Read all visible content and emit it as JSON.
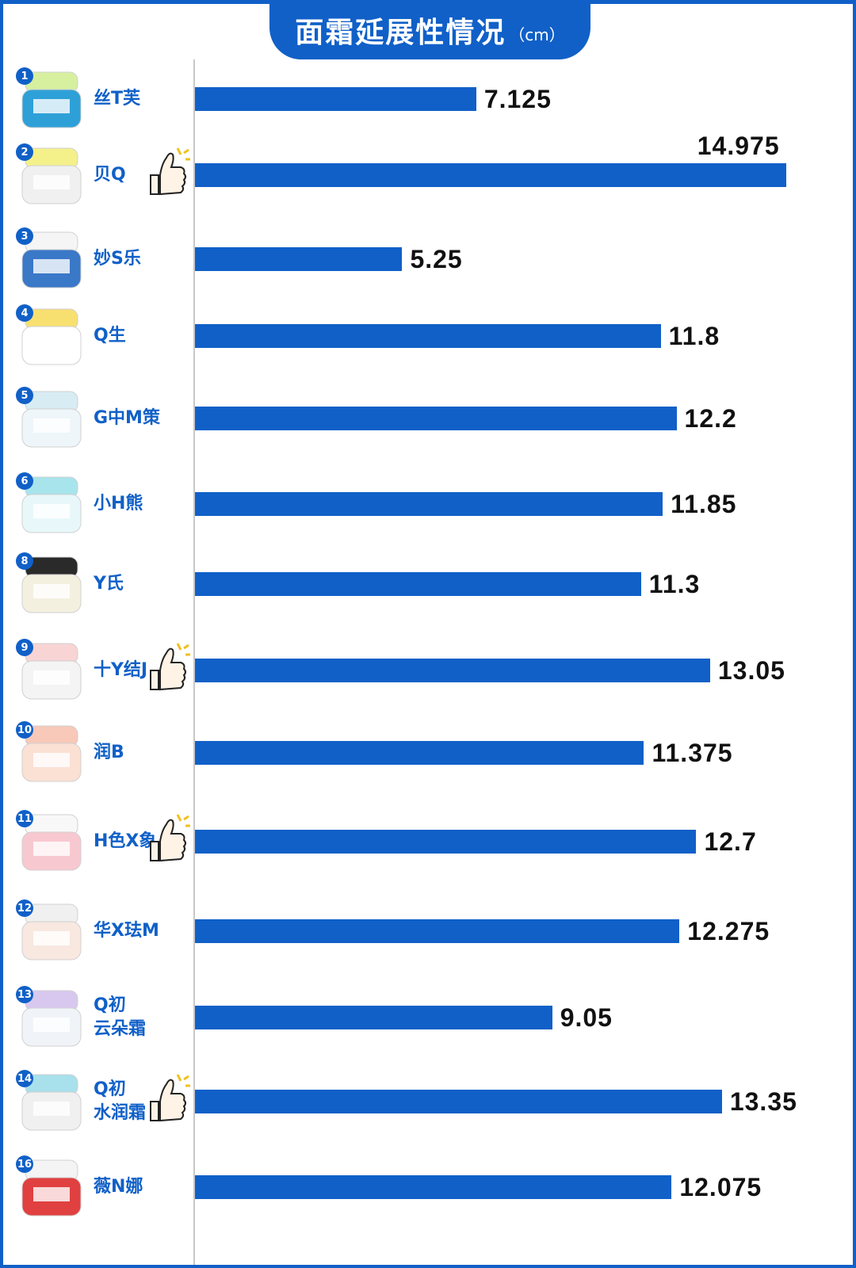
{
  "title": "面霜延展性情况",
  "unit": "（cm）",
  "chart_data": {
    "type": "bar",
    "orientation": "horizontal",
    "title": "面霜延展性情况",
    "unit": "cm",
    "xlim": [
      0,
      15
    ],
    "categories": [
      "丝T芙",
      "贝Q",
      "妙S乐",
      "Q生",
      "G中M策",
      "小H熊",
      "Y氏",
      "十Y结J",
      "润B",
      "H色X象",
      "华X珐M",
      "Q初\n云朵霜",
      "Q初\n水润霜",
      "薇N娜"
    ],
    "ranks": [
      "1",
      "2",
      "3",
      "4",
      "5",
      "6",
      "8",
      "9",
      "10",
      "11",
      "12",
      "13",
      "14",
      "16"
    ],
    "values": [
      7.125,
      14.975,
      5.25,
      11.8,
      12.2,
      11.85,
      11.3,
      13.05,
      11.375,
      12.7,
      12.275,
      9.05,
      13.35,
      12.075
    ],
    "value_labels": [
      "7.125",
      "14.975",
      "5.25",
      "11.8",
      "12.2",
      "11.85",
      "11.3",
      "13.05",
      "11.375",
      "12.7",
      "12.275",
      "9.05",
      "13.35",
      "12.075"
    ],
    "highlighted": [
      false,
      true,
      false,
      false,
      false,
      false,
      false,
      true,
      false,
      true,
      false,
      false,
      true,
      false
    ],
    "highlight_icon": "thumbs-up-icon",
    "bar_color": "#1060c8"
  }
}
